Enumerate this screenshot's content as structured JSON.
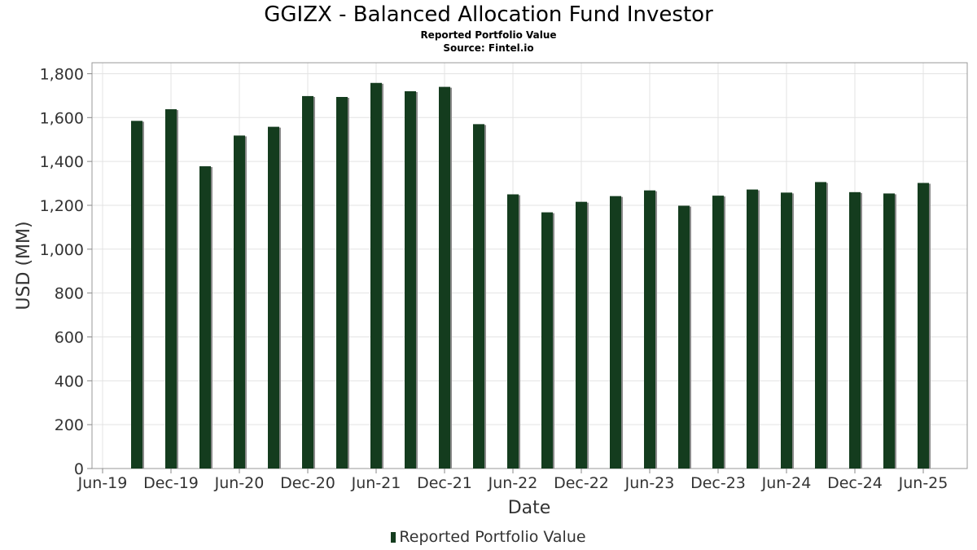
{
  "chart_data": {
    "type": "bar",
    "title": "GGIZX - Balanced Allocation Fund Investor",
    "subtitle": "Reported Portfolio Value",
    "source": "Source: Fintel.io",
    "xlabel": "Date",
    "ylabel": "USD (MM)",
    "ylim": [
      0,
      1850
    ],
    "yticks": [
      0,
      200,
      400,
      600,
      800,
      1000,
      1200,
      1400,
      1600,
      1800
    ],
    "ytick_labels": [
      "0",
      "200",
      "400",
      "600",
      "800",
      "1,000",
      "1,200",
      "1,400",
      "1,600",
      "1,800"
    ],
    "xtick_labels": [
      "Jun-19",
      "Dec-19",
      "Jun-20",
      "Dec-20",
      "Jun-21",
      "Dec-21",
      "Jun-22",
      "Dec-22",
      "Jun-23",
      "Dec-23",
      "Jun-24",
      "Dec-24",
      "Jun-25"
    ],
    "grid": true,
    "legend_position": "bottom",
    "bar_color": "#143c1e",
    "series": [
      {
        "name": "Reported Portfolio Value",
        "x": [
          "2019-09",
          "2019-12",
          "2020-03",
          "2020-06",
          "2020-09",
          "2020-12",
          "2021-03",
          "2021-06",
          "2021-09",
          "2021-12",
          "2022-03",
          "2022-06",
          "2022-09",
          "2022-12",
          "2023-03",
          "2023-06",
          "2023-09",
          "2023-12",
          "2024-03",
          "2024-06",
          "2024-09",
          "2024-12",
          "2025-03",
          "2025-06"
        ],
        "values": [
          1585,
          1638,
          1378,
          1518,
          1558,
          1698,
          1694,
          1758,
          1720,
          1740,
          1570,
          1250,
          1168,
          1216,
          1242,
          1268,
          1198,
          1244,
          1272,
          1258,
          1306,
          1260,
          1254,
          1302
        ]
      }
    ]
  }
}
